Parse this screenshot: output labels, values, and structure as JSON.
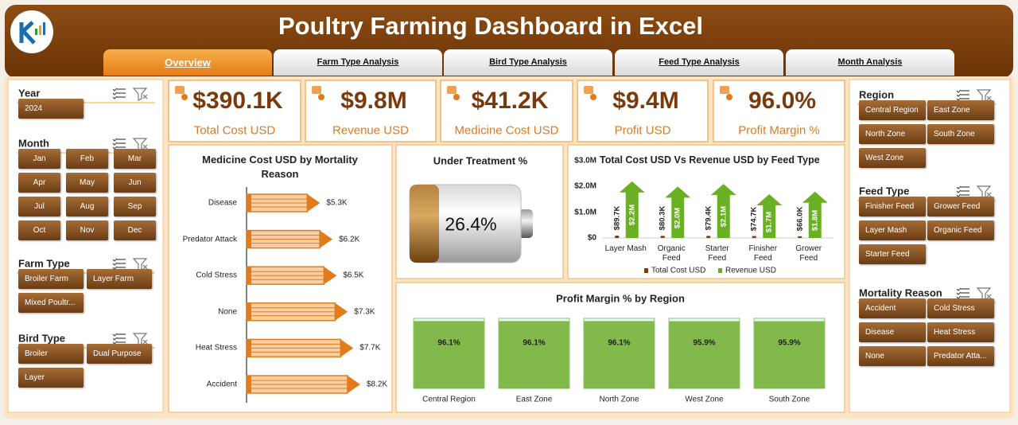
{
  "header": {
    "title": "Poultry Farming Dashboard in Excel"
  },
  "tabs": [
    "Overview",
    "Farm Type Analysis",
    "Bird Type Analysis",
    "Feed Type Analysis",
    "Month Analysis"
  ],
  "active_tab": 0,
  "slicers": {
    "left": [
      {
        "title": "Year",
        "items": [
          "2024"
        ]
      },
      {
        "title": "Month",
        "items": [
          "Jan",
          "Feb",
          "Mar",
          "Apr",
          "May",
          "Jun",
          "Jul",
          "Aug",
          "Sep",
          "Oct",
          "Nov",
          "Dec"
        ]
      },
      {
        "title": "Farm Type",
        "items": [
          "Broiler Farm",
          "Layer Farm",
          "Mixed Poultr..."
        ]
      },
      {
        "title": "Bird Type",
        "items": [
          "Broiler",
          "Dual Purpose",
          "Layer"
        ]
      }
    ],
    "right": [
      {
        "title": "Region",
        "items": [
          "Central Region",
          "East Zone",
          "North Zone",
          "South Zone",
          "West Zone"
        ]
      },
      {
        "title": "Feed Type",
        "items": [
          "Finisher Feed",
          "Grower Feed",
          "Layer Mash",
          "Organic Feed",
          "Starter Feed"
        ]
      },
      {
        "title": "Mortality Reason",
        "items": [
          "Accident",
          "Cold Stress",
          "Disease",
          "Heat Stress",
          "None",
          "Predator Atta..."
        ]
      }
    ]
  },
  "kpis": [
    {
      "value": "$390.1K",
      "label": "Total Cost USD"
    },
    {
      "value": "$9.8M",
      "label": "Revenue USD"
    },
    {
      "value": "$41.2K",
      "label": "Medicine Cost USD"
    },
    {
      "value": "$9.4M",
      "label": "Profit USD"
    },
    {
      "value": "96.0%",
      "label": "Profit Margin %"
    }
  ],
  "chart_data": [
    {
      "type": "bar",
      "horizontal": true,
      "title": "Medicine Cost USD by Mortality Reason",
      "categories": [
        "Disease",
        "Predator Attack",
        "Cold Stress",
        "None",
        "Heat Stress",
        "Accident"
      ],
      "values": [
        5.3,
        6.2,
        6.5,
        7.3,
        7.7,
        8.2
      ],
      "value_labels": [
        "$5.3K",
        "$6.2K",
        "$6.5K",
        "$7.3K",
        "$7.7K",
        "$8.2K"
      ],
      "color": "#e27b1c"
    },
    {
      "type": "gauge",
      "title": "Under Treatment %",
      "value": 26.4,
      "value_label": "26.4%",
      "color": "#8a5417"
    },
    {
      "type": "bar",
      "title": "Total Cost USD Vs Revenue USD by Feed Type",
      "categories": [
        "Layer Mash",
        "Organic Feed",
        "Starter Feed",
        "Finisher Feed",
        "Grower Feed"
      ],
      "series": [
        {
          "name": "Total Cost USD",
          "color": "#7b3c10",
          "values": [
            89700,
            80300,
            79400,
            74700,
            66000
          ],
          "value_labels": [
            "$89.7K",
            "$80.3K",
            "$79.4K",
            "$74.7K",
            "$66.0K"
          ]
        },
        {
          "name": "Revenue USD",
          "color": "#6ab023",
          "values": [
            2200000,
            2000000,
            2100000,
            1700000,
            1800000
          ],
          "value_labels": [
            "$2.2M",
            "$2.0M",
            "$2.1M",
            "$1.7M",
            "$1.8M"
          ]
        }
      ],
      "ylim": [
        0,
        3000000
      ],
      "yticks": [
        {
          "value": 0,
          "label": "$0"
        },
        {
          "value": 1000000,
          "label": "$1.0M"
        },
        {
          "value": 2000000,
          "label": "$2.0M"
        },
        {
          "value": 3000000,
          "label": "$3.0M"
        }
      ],
      "legend": "bottom",
      "grid": false
    },
    {
      "type": "bar",
      "title": "Profit Margin % by Region",
      "categories": [
        "Central Region",
        "East Zone",
        "North Zone",
        "West Zone",
        "South Zone"
      ],
      "values": [
        96.1,
        96.1,
        96.1,
        95.9,
        95.9
      ],
      "value_labels": [
        "96.1%",
        "96.1%",
        "96.1%",
        "95.9%",
        "95.9%"
      ],
      "color": "#6fae2a"
    }
  ]
}
